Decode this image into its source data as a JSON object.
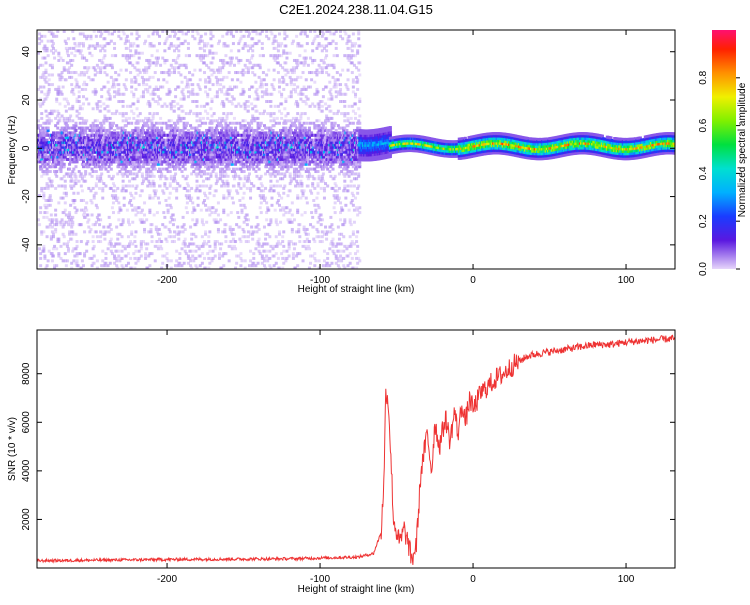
{
  "title": "C2E1.2024.238.11.04.G15",
  "chart_data": [
    {
      "type": "heatmap",
      "xlabel": "Height of straight line (km)",
      "ylabel": "Frequency (Hz)",
      "xlim": [
        -285,
        132
      ],
      "ylim": [
        -50,
        49
      ],
      "xticks": [
        -200,
        -100,
        0,
        100
      ],
      "yticks": [
        -40,
        -20,
        0,
        20,
        40
      ],
      "colorbar": {
        "label": "Normalized spectral amplitude",
        "range": [
          0,
          1
        ],
        "ticks": [
          0.0,
          0.2,
          0.4,
          0.6,
          0.8
        ]
      },
      "noise_region": {
        "x_from": -285,
        "x_to": -75,
        "core_width_hz": 10,
        "spread_hz": 50
      },
      "line_segments": [
        {
          "x_from": -75,
          "x_to": -55,
          "freq": 2,
          "width_hz": 6,
          "amplitude": 0.4
        },
        {
          "x_from": -55,
          "x_to": -10,
          "freq": 0.5,
          "width_hz": 3,
          "amplitude": 0.8
        },
        {
          "x_from": -10,
          "x_to": 132,
          "freq": 0.5,
          "width_hz": 4,
          "amplitude": 0.9
        }
      ]
    },
    {
      "type": "line",
      "xlabel": "Height of straight line (km)",
      "ylabel": "SNR (10 * v/v)",
      "xlim": [
        -285,
        132
      ],
      "ylim": [
        0,
        9800
      ],
      "xticks": [
        -200,
        -100,
        0,
        100
      ],
      "yticks": [
        2000,
        4000,
        6000,
        8000
      ],
      "color": "#ee3333",
      "x": [
        -285,
        -200,
        -120,
        -75,
        -65,
        -60,
        -58,
        -57,
        -55,
        -52,
        -48,
        -45,
        -42,
        -40,
        -37,
        -34,
        -30,
        -27,
        -25,
        -22,
        -18,
        -15,
        -12,
        -10,
        -7,
        -5,
        -2,
        0,
        5,
        10,
        15,
        20,
        25,
        30,
        35,
        40,
        50,
        60,
        70,
        80,
        90,
        100,
        110,
        120,
        132
      ],
      "y": [
        300,
        350,
        380,
        450,
        600,
        1500,
        4000,
        7500,
        6500,
        2000,
        1000,
        1600,
        900,
        300,
        1000,
        4000,
        5500,
        4000,
        6000,
        5000,
        6200,
        5200,
        6500,
        5500,
        6800,
        6000,
        7000,
        6500,
        7200,
        7500,
        7800,
        8000,
        8300,
        8500,
        8700,
        8800,
        8900,
        9000,
        9100,
        9200,
        9200,
        9300,
        9350,
        9400,
        9450
      ]
    }
  ]
}
